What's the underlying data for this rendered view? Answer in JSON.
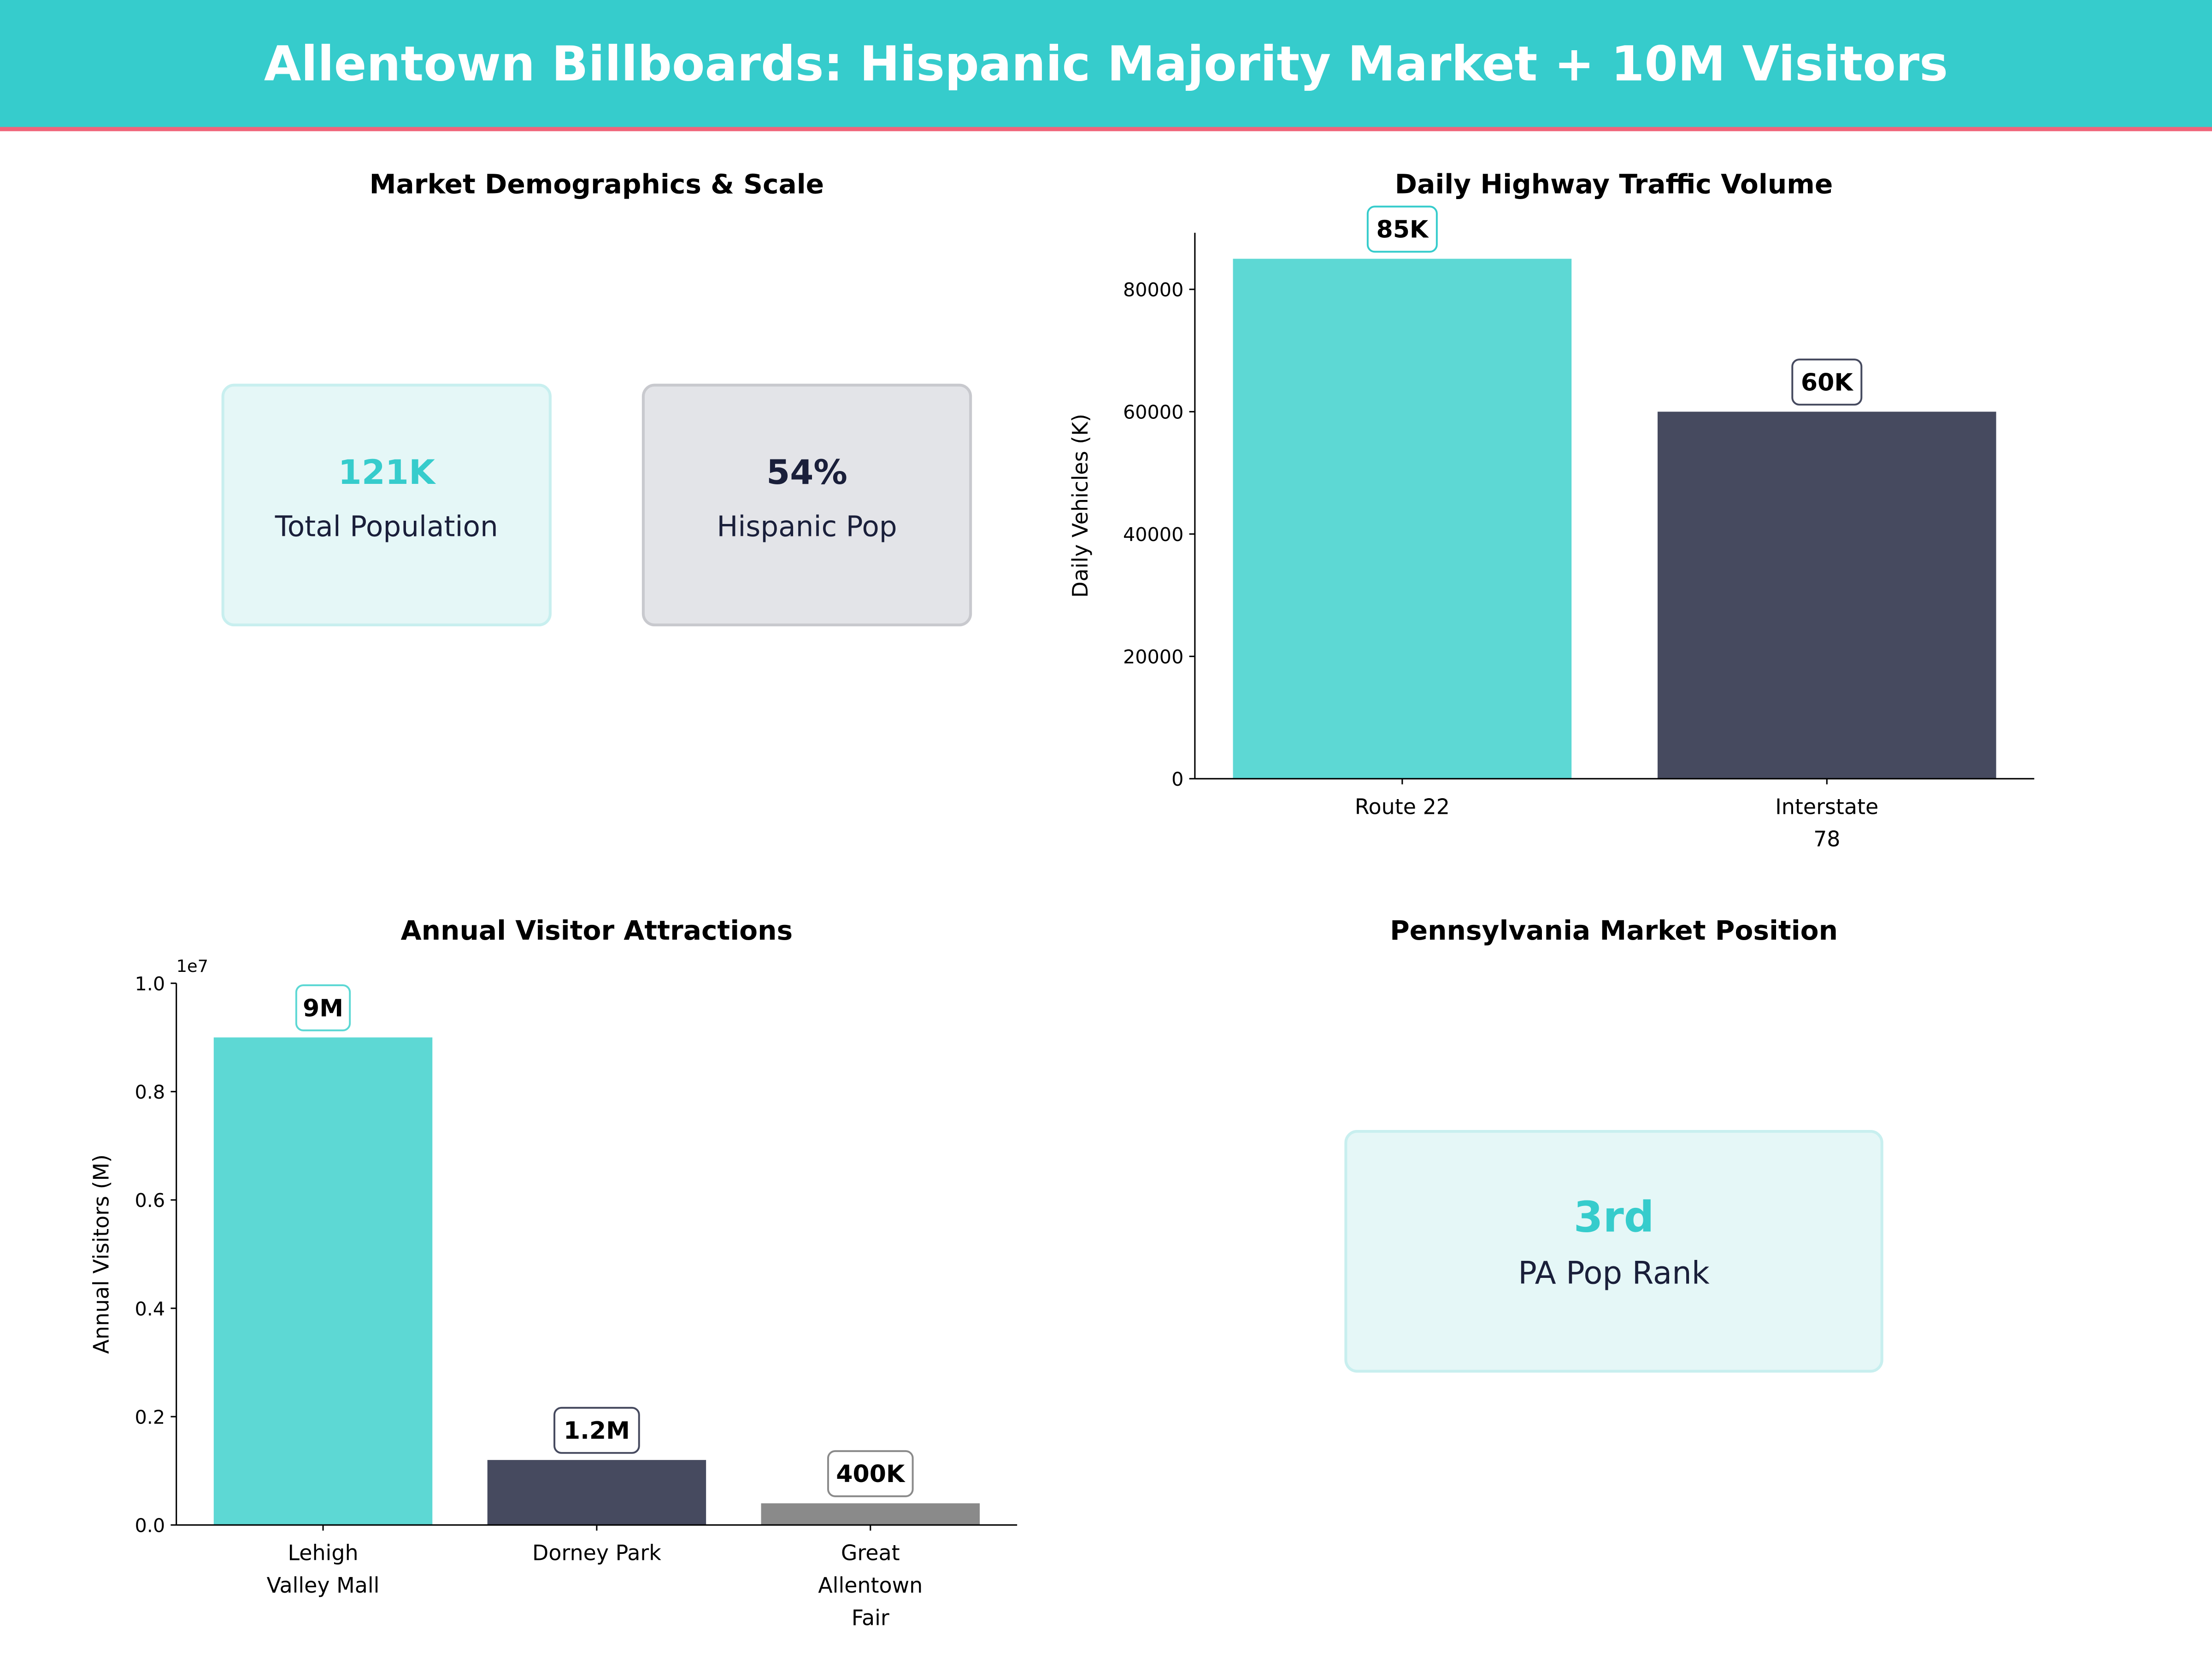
{
  "header": {
    "title": "Allentown Billboards: Hispanic Majority Market + 10M Visitors"
  },
  "colors": {
    "teal": "#36CCCC",
    "accent_line": "#F0647A",
    "navy": "#464A5F",
    "gray": "#8A8A8A",
    "dark_text": "#1A1F3A"
  },
  "demographics": {
    "title": "Market Demographics & Scale",
    "cards": [
      {
        "value": "121K",
        "label": "Total Population"
      },
      {
        "value": "54%",
        "label": "Hispanic Pop"
      }
    ]
  },
  "position": {
    "title": "Pennsylvania Market Position",
    "card": {
      "value": "3rd",
      "label": "PA Pop Rank"
    }
  },
  "chart_data": [
    {
      "type": "bar",
      "title": "Daily Highway Traffic Volume",
      "ylabel": "Daily Vehicles (K)",
      "xlabel": "",
      "categories": [
        [
          "Route 22"
        ],
        [
          "Interstate",
          "78"
        ]
      ],
      "values": [
        85000,
        60000
      ],
      "data_labels": [
        "85K",
        "60K"
      ],
      "yticks": [
        "0",
        "20000",
        "40000",
        "60000",
        "80000"
      ],
      "ytick_values": [
        0,
        20000,
        40000,
        60000,
        80000
      ],
      "ylim": [
        0,
        89250
      ],
      "grid": false
    },
    {
      "type": "bar",
      "title": "Annual Visitor Attractions",
      "ylabel": "Annual Visitors (M)",
      "xlabel": "",
      "offset_text": "1e7",
      "categories": [
        [
          "Lehigh",
          "Valley Mall"
        ],
        [
          "Dorney Park"
        ],
        [
          "Great",
          "Allentown",
          "Fair"
        ]
      ],
      "values": [
        9000000,
        1200000,
        400000
      ],
      "data_labels": [
        "9M",
        "1.2M",
        "400K"
      ],
      "yticks": [
        "0.0",
        "0.2",
        "0.4",
        "0.6",
        "0.8",
        "1.0"
      ],
      "ytick_values": [
        0,
        2000000,
        4000000,
        6000000,
        8000000,
        10000000
      ],
      "ylim": [
        0,
        10000000
      ],
      "grid": false
    }
  ]
}
